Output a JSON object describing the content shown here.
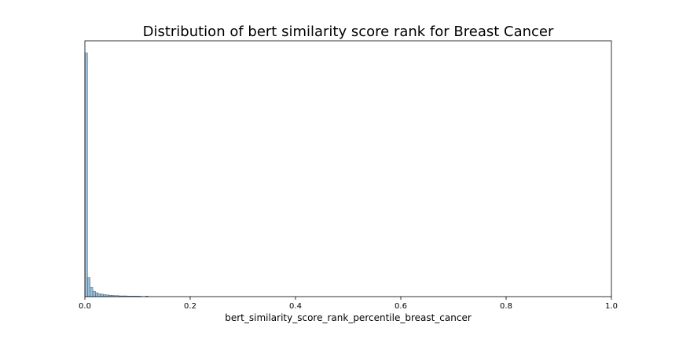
{
  "chart_data": {
    "type": "bar",
    "title": "Distribution of bert similarity score rank for Breast Cancer",
    "xlabel": "bert_similarity_score_rank_percentile_breast_cancer",
    "ylabel": "",
    "xlim": [
      0.0,
      1.0
    ],
    "ylim": [
      0,
      1.05
    ],
    "x_ticks": [
      0.0,
      0.2,
      0.4,
      0.6,
      0.8,
      1.0
    ],
    "x_tick_labels": [
      "0.0",
      "0.2",
      "0.4",
      "0.6",
      "0.8",
      "1.0"
    ],
    "y_axis_visible": false,
    "grid": false,
    "bin_width": 0.005,
    "bin_starts": [
      0.0,
      0.005,
      0.01,
      0.015,
      0.02,
      0.025,
      0.03,
      0.035,
      0.04,
      0.045,
      0.05,
      0.055,
      0.06,
      0.065,
      0.07,
      0.075,
      0.08,
      0.085,
      0.09,
      0.095,
      0.1,
      0.105,
      0.115
    ],
    "values": [
      1.0,
      0.078,
      0.038,
      0.022,
      0.016,
      0.012,
      0.01,
      0.008,
      0.007,
      0.006,
      0.005,
      0.004,
      0.004,
      0.003,
      0.003,
      0.003,
      0.002,
      0.002,
      0.002,
      0.002,
      0.002,
      0.001,
      0.002
    ],
    "colors": {
      "bar_fill": "#9bbfd8",
      "bar_edge": "#3a5a70",
      "axis": "#000000"
    }
  }
}
